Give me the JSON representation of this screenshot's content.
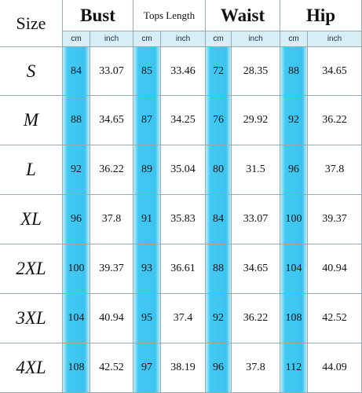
{
  "header": {
    "size": "Size",
    "groups": [
      "Bust",
      "Tops Length",
      "Waist",
      "Hip"
    ],
    "units": [
      "cm",
      "inch",
      "cm",
      "inch",
      "cm",
      "inch",
      "cm",
      "inch"
    ]
  },
  "rows": [
    [
      "S",
      "84",
      "33.07",
      "85",
      "33.46",
      "72",
      "28.35",
      "88",
      "34.65"
    ],
    [
      "M",
      "88",
      "34.65",
      "87",
      "34.25",
      "76",
      "29.92",
      "92",
      "36.22"
    ],
    [
      "L",
      "92",
      "36.22",
      "89",
      "35.04",
      "80",
      "31.5",
      "96",
      "37.8"
    ],
    [
      "XL",
      "96",
      "37.8",
      "91",
      "35.83",
      "84",
      "33.07",
      "100",
      "39.37"
    ],
    [
      "2XL",
      "100",
      "39.37",
      "93",
      "36.61",
      "88",
      "34.65",
      "104",
      "40.94"
    ],
    [
      "3XL",
      "104",
      "40.94",
      "95",
      "37.4",
      "92",
      "36.22",
      "108",
      "42.52"
    ],
    [
      "4XL",
      "108",
      "42.52",
      "97",
      "38.19",
      "96",
      "37.8",
      "112",
      "44.09"
    ]
  ]
}
